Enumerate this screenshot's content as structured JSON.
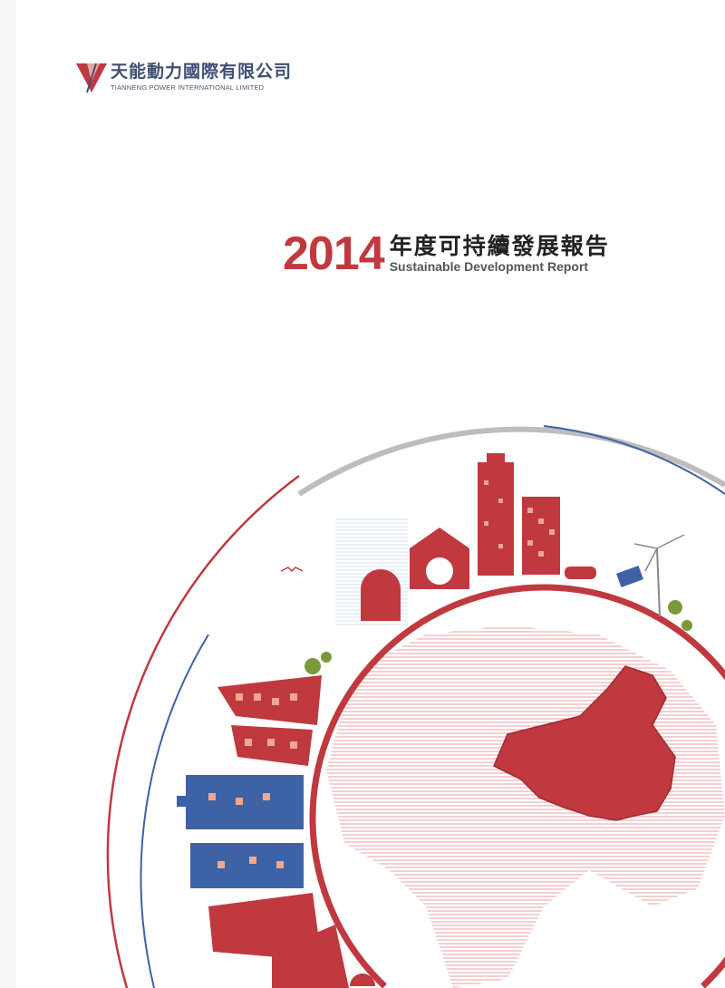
{
  "company": {
    "name_cn": "天能動力國際有限公司",
    "name_en": "TIANNENG POWER INTERNATIONAL LIMITED"
  },
  "report": {
    "year": "2014",
    "title_cn": "年度可持續發展報告",
    "title_en": "Sustainable Development Report"
  },
  "colors": {
    "brand_red": "#c0393f",
    "brand_blue": "#3f4f72",
    "arc_grey": "#bdbdbd",
    "building_blue": "#3d63a6"
  }
}
